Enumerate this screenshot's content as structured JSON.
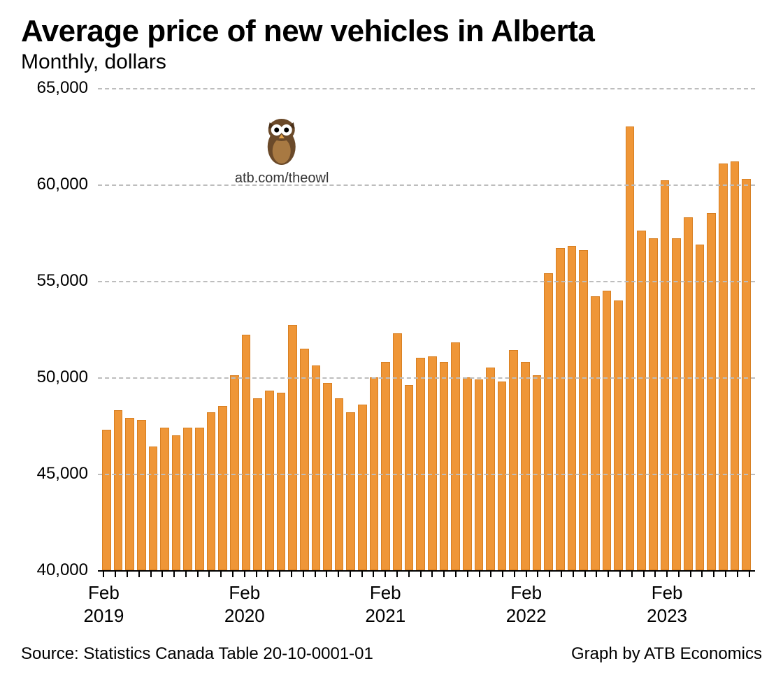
{
  "title": "Average price of new vehicles in Alberta",
  "subtitle": "Monthly, dollars",
  "source": "Source: Statistics Canada Table 20-10-0001-01",
  "credit": "Graph by ATB Economics",
  "watermark_text": "atb.com/theowl",
  "watermark_position_pct": 28,
  "chart": {
    "type": "bar",
    "bar_fill": "#ef9637",
    "bar_stroke": "#d77f22",
    "background_color": "#ffffff",
    "grid_color": "#bdbdbd",
    "axis_color": "#000000",
    "title_fontsize": 44,
    "subtitle_fontsize": 30,
    "axis_fontsize": 24,
    "xaxis_fontsize": 26,
    "ylim": [
      40000,
      65000
    ],
    "yticks": [
      40000,
      45000,
      50000,
      55000,
      60000,
      65000
    ],
    "ytick_labels": [
      "40,000",
      "45,000",
      "50,000",
      "55,000",
      "60,000",
      "65,000"
    ],
    "xticks_major": [
      {
        "index": 0,
        "label_top": "Feb",
        "label_bottom": "2019"
      },
      {
        "index": 12,
        "label_top": "Feb",
        "label_bottom": "2020"
      },
      {
        "index": 24,
        "label_top": "Feb",
        "label_bottom": "2021"
      },
      {
        "index": 36,
        "label_top": "Feb",
        "label_bottom": "2022"
      },
      {
        "index": 48,
        "label_top": "Feb",
        "label_bottom": "2023"
      }
    ],
    "values": [
      47300,
      48300,
      47900,
      47800,
      46400,
      47400,
      47000,
      47400,
      47400,
      48200,
      48500,
      50100,
      52200,
      48900,
      49300,
      49200,
      52700,
      51500,
      50600,
      49700,
      48900,
      48200,
      48600,
      50000,
      50800,
      52300,
      49600,
      51000,
      51100,
      50800,
      51800,
      50000,
      49900,
      50500,
      49800,
      51400,
      50800,
      50100,
      55400,
      56700,
      56800,
      56600,
      54200,
      54500,
      54000,
      63000,
      57600,
      57200,
      60200,
      57200,
      58300,
      56900,
      58500,
      61100,
      61200,
      60300
    ]
  },
  "owl": {
    "body_color": "#6b4a2a",
    "belly_color": "#a87942",
    "eye_white": "#ffffff",
    "eye_black": "#000000",
    "beak_color": "#e2a24a",
    "ear_color": "#4a3018"
  }
}
